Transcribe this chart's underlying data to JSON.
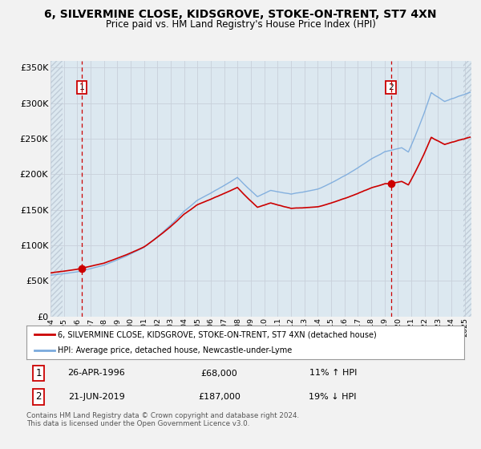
{
  "title": "6, SILVERMINE CLOSE, KIDSGROVE, STOKE-ON-TRENT, ST7 4XN",
  "subtitle": "Price paid vs. HM Land Registry's House Price Index (HPI)",
  "legend_line1": "6, SILVERMINE CLOSE, KIDSGROVE, STOKE-ON-TRENT, ST7 4XN (detached house)",
  "legend_line2": "HPI: Average price, detached house, Newcastle-under-Lyme",
  "annotation1_date": "26-APR-1996",
  "annotation1_price": "£68,000",
  "annotation1_hpi": "11% ↑ HPI",
  "annotation2_date": "21-JUN-2019",
  "annotation2_price": "£187,000",
  "annotation2_hpi": "19% ↓ HPI",
  "footnote1": "Contains HM Land Registry data © Crown copyright and database right 2024.",
  "footnote2": "This data is licensed under the Open Government Licence v3.0.",
  "price_color": "#cc0000",
  "hpi_color": "#7aaadd",
  "marker_color": "#cc0000",
  "vline_color": "#cc0000",
  "grid_color": "#c8d0da",
  "bg_color": "#dce8f0",
  "hatch_color": "#c0ccd8",
  "yticks": [
    0,
    50000,
    100000,
    150000,
    200000,
    250000,
    300000,
    350000
  ],
  "ytick_labels": [
    "£0",
    "£50K",
    "£100K",
    "£150K",
    "£200K",
    "£250K",
    "£300K",
    "£350K"
  ],
  "sale1_x": 1996.32,
  "sale1_y": 68000,
  "sale2_x": 2019.47,
  "sale2_y": 187000,
  "xmin": 1994.0,
  "xmax": 2025.5,
  "ymin": 0,
  "ymax": 360000,
  "hatch_left_end": 1994.92,
  "hatch_right_start": 2024.92
}
